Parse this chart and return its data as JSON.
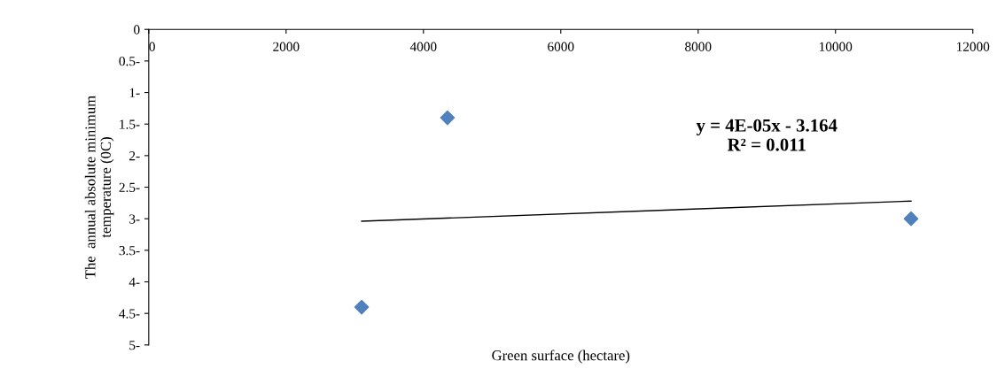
{
  "chart_data": {
    "type": "scatter",
    "xlabel": "Green surface (hectare)",
    "ylabel": "The  annual absolute minimum\ntemperature (0C)",
    "xlim": [
      0,
      12000
    ],
    "xticks": [
      0,
      2000,
      4000,
      6000,
      8000,
      10000,
      12000
    ],
    "ylim": [
      -5,
      0
    ],
    "yticks": [
      0,
      {
        "value": -0.5,
        "label": "0.5-"
      },
      {
        "value": -1,
        "label": "1-"
      },
      {
        "value": -1.5,
        "label": "1.5-"
      },
      {
        "value": -2,
        "label": "2-"
      },
      {
        "value": -2.5,
        "label": "2.5-"
      },
      {
        "value": -3,
        "label": "3-"
      },
      {
        "value": -3.5,
        "label": "3.5-"
      },
      {
        "value": -4,
        "label": "4-"
      },
      {
        "value": -4.5,
        "label": "4.5-"
      },
      {
        "value": -5,
        "label": "5-"
      }
    ],
    "grid": false,
    "legend": false,
    "series": [
      {
        "color": "#4f81bd",
        "marker": "diamond",
        "x": [
          3100,
          4350,
          11100
        ],
        "values": [
          -4.4,
          -1.4,
          -3.0
        ]
      },
      {
        "type": "line",
        "marker": "none",
        "color": "#000000",
        "x": [
          3100,
          11100
        ],
        "values": [
          -3.04,
          -2.72
        ]
      }
    ],
    "annotations": [
      "y = 4E-05x - 3.164\nR² = 0.011"
    ]
  }
}
